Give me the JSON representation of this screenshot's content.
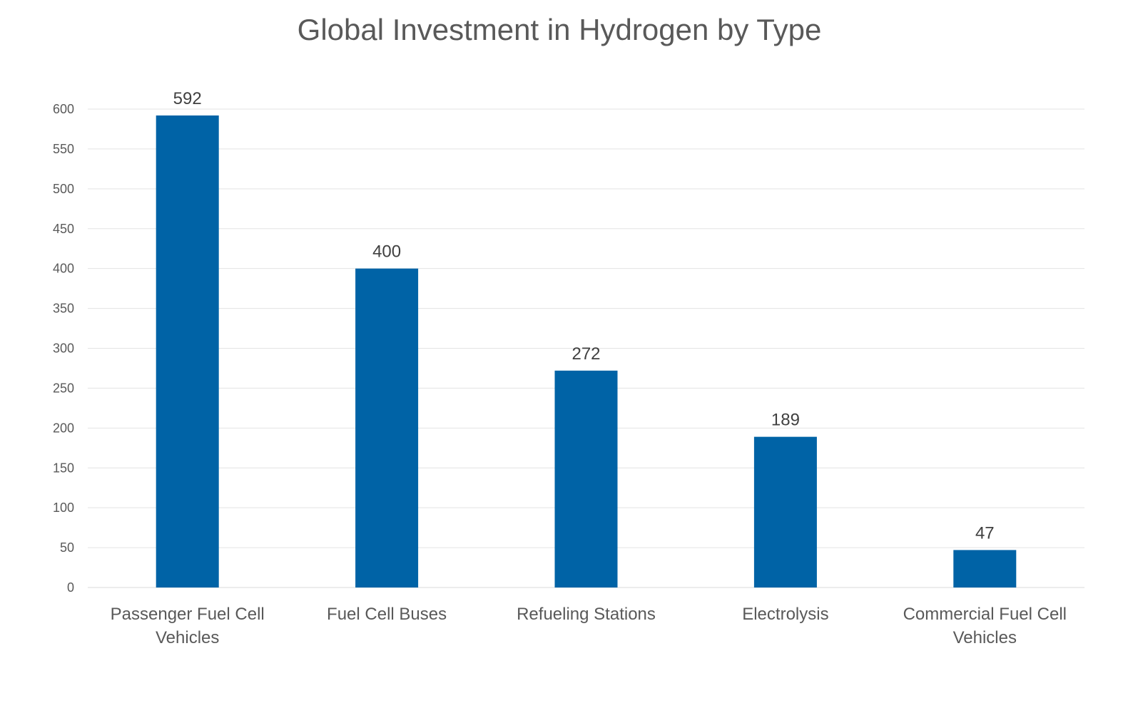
{
  "chart_data": {
    "type": "bar",
    "title": "Global Investment in Hydrogen by Type",
    "xlabel": "",
    "ylabel": "",
    "categories": [
      [
        "Passenger Fuel Cell",
        "Vehicles"
      ],
      [
        "Fuel Cell Buses"
      ],
      [
        "Refueling Stations"
      ],
      [
        "Electrolysis"
      ],
      [
        "Commercial Fuel Cell",
        "Vehicles"
      ]
    ],
    "values": [
      592,
      400,
      272,
      189,
      47
    ],
    "ylim": [
      0,
      600
    ],
    "yticks": [
      0,
      50,
      100,
      150,
      200,
      250,
      300,
      350,
      400,
      450,
      500,
      550,
      600
    ],
    "grid": true,
    "legend": "none",
    "colors": {
      "bar": "#0063A6",
      "grid": "#E3E3E3",
      "tick_text": "#595959",
      "data_label": "#404040",
      "category_text": "#595959"
    }
  }
}
